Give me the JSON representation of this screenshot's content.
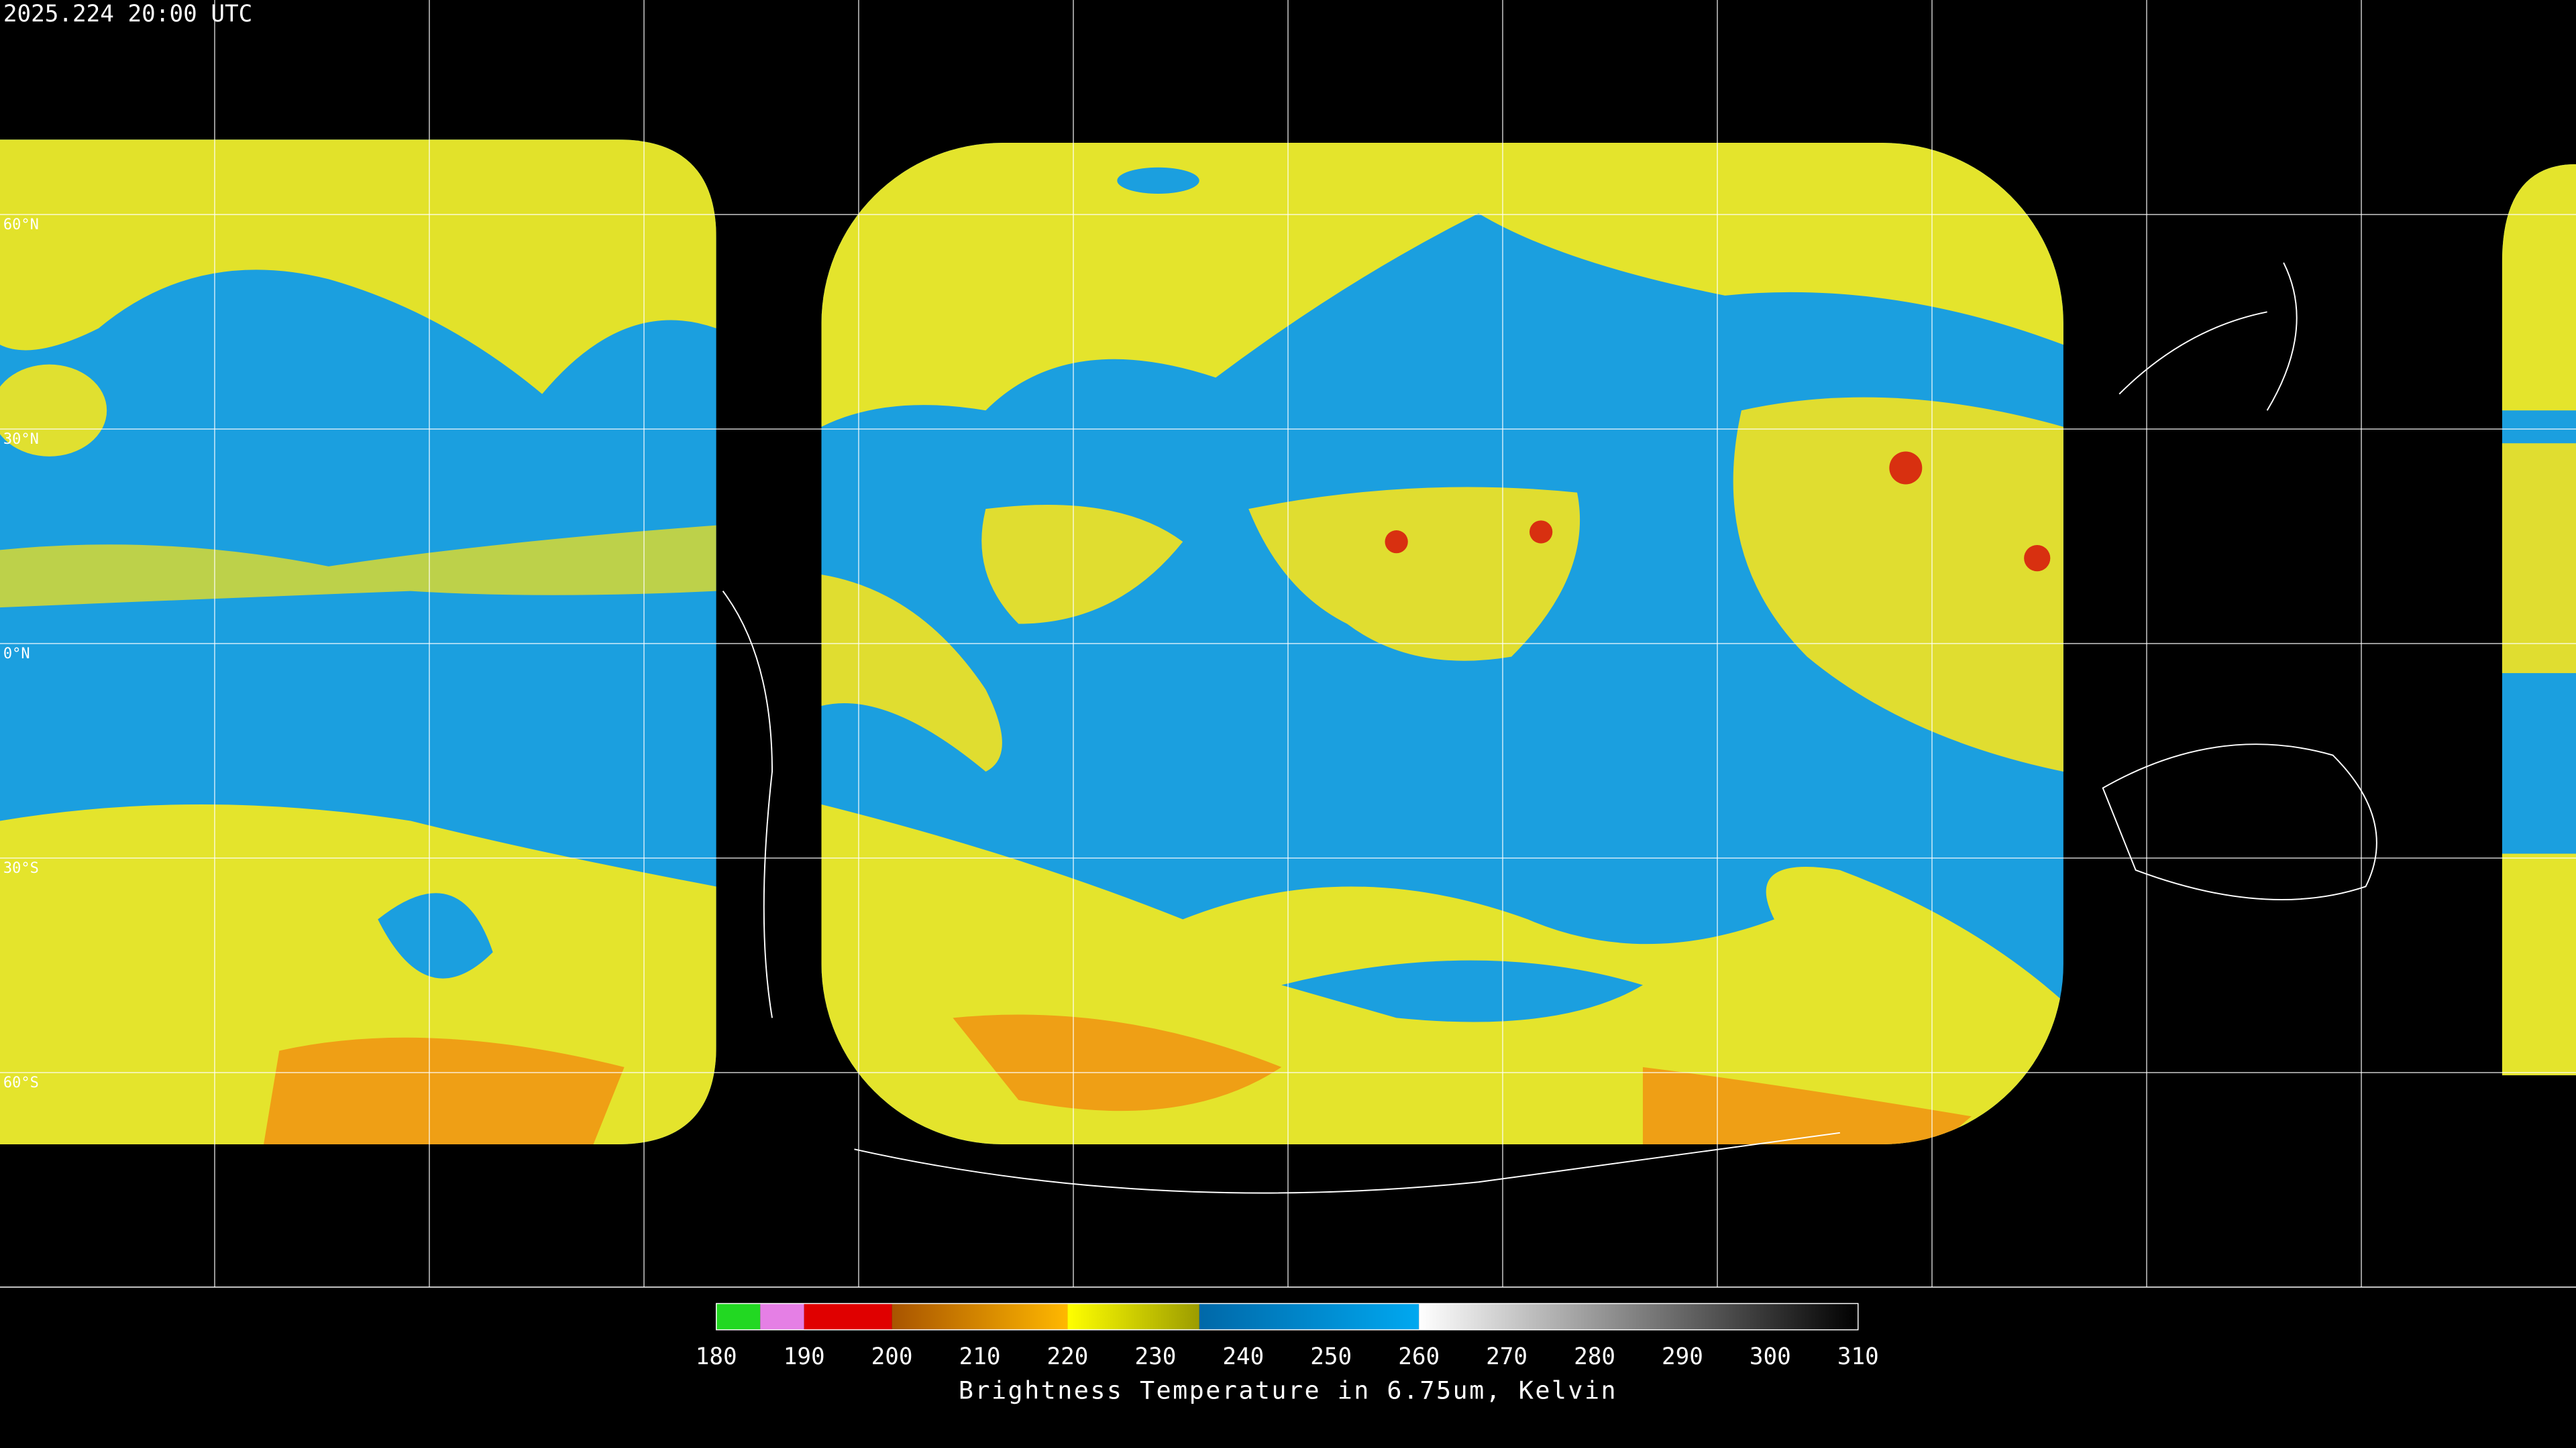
{
  "header": {
    "timestamp": "2025.224 20:00 UTC"
  },
  "map": {
    "lat_range": [
      90,
      -90
    ],
    "lat_lines": [
      {
        "value": 60,
        "label": "60°N"
      },
      {
        "value": 30,
        "label": "30°N"
      },
      {
        "value": 0,
        "label": "0°N"
      },
      {
        "value": -30,
        "label": "30°S"
      },
      {
        "value": -60,
        "label": "60°S"
      }
    ]
  },
  "colorbar": {
    "label": "Brightness Temperature in 6.75um, Kelvin",
    "lim": [
      180,
      310
    ],
    "ticks": [
      180,
      190,
      200,
      210,
      220,
      230,
      240,
      250,
      260,
      270,
      280,
      290,
      300,
      310
    ],
    "segments": [
      {
        "from": 180,
        "to": 185,
        "colors": [
          "#22d822",
          "#22d822"
        ]
      },
      {
        "from": 185,
        "to": 190,
        "colors": [
          "#e57fe5",
          "#e57fe5"
        ]
      },
      {
        "from": 190,
        "to": 200,
        "colors": [
          "#e00000",
          "#e00000"
        ]
      },
      {
        "from": 200,
        "to": 220,
        "colors": [
          "#a85400",
          "#ffb800"
        ]
      },
      {
        "from": 220,
        "to": 235,
        "colors": [
          "#ffff00",
          "#9c9c00"
        ]
      },
      {
        "from": 235,
        "to": 260,
        "colors": [
          "#0068a8",
          "#00a8f0"
        ]
      },
      {
        "from": 260,
        "to": 310,
        "colors": [
          "#ffffff",
          "#000000"
        ]
      }
    ]
  }
}
